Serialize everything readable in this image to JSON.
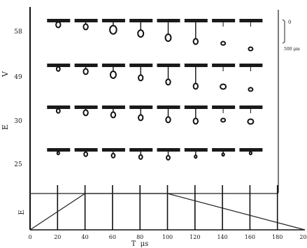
{
  "figure": {
    "y_axis_letters": [
      "V",
      "E"
    ],
    "scale_bar_label": "500 μm",
    "scale_bar_mark": "0"
  },
  "chart_data": {
    "type": "line",
    "title": "",
    "xlabel": "T  μs",
    "ylabel": "E",
    "x_ticks": [
      0,
      20,
      40,
      60,
      80,
      100,
      120,
      140,
      160,
      180,
      200
    ],
    "xlim": [
      0,
      200
    ],
    "voltage_rows": [
      58,
      49,
      30,
      25
    ],
    "frame_times_us": [
      20,
      40,
      60,
      80,
      100,
      120,
      140,
      160
    ],
    "pulse": {
      "x": [
        0,
        40,
        100,
        200
      ],
      "y": [
        0,
        1,
        1,
        0
      ]
    }
  }
}
